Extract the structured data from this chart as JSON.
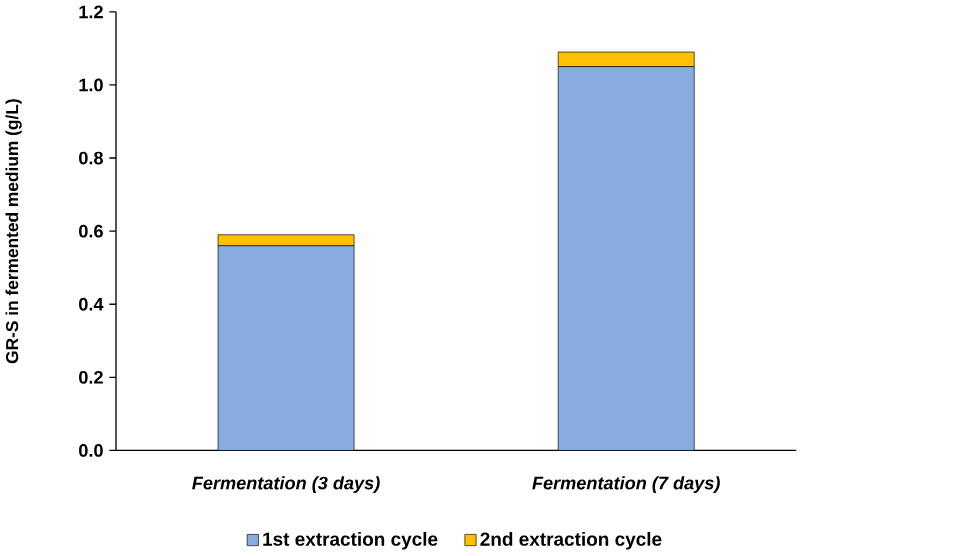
{
  "chart_data": {
    "type": "bar",
    "stacked": true,
    "ylabel": "GR-S in fermented medium (g/L)",
    "categories": [
      "Fermentation (3 days)",
      "Fermentation (7 days)"
    ],
    "series": [
      {
        "name": "1st extraction cycle",
        "color": "#87ade0",
        "values": [
          0.56,
          1.05
        ]
      },
      {
        "name": "2nd extraction cycle",
        "color": "#ffc000",
        "values": [
          0.03,
          0.04
        ]
      }
    ],
    "ylim": [
      0,
      1.2
    ],
    "yticks": [
      {
        "value": 0,
        "label": "0.0"
      },
      {
        "value": 0.2,
        "label": "0.2"
      },
      {
        "value": 0.4,
        "label": "0.4"
      },
      {
        "value": 0.6,
        "label": "0.6"
      },
      {
        "value": 0.8,
        "label": "0.8"
      },
      {
        "value": 1.0,
        "label": "1.0"
      },
      {
        "value": 1.2,
        "label": "1.2"
      }
    ],
    "grid": false,
    "legend": "bottom"
  }
}
